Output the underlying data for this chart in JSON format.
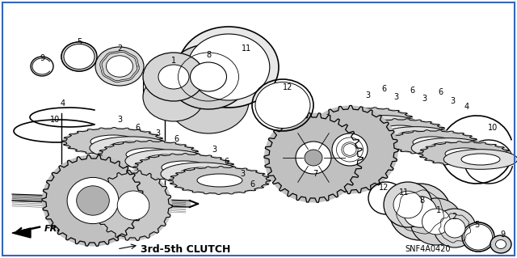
{
  "title": "3rd-5th CLUTCH",
  "part_number": "SNF4A0420",
  "background_color": "#ffffff",
  "fig_width": 6.4,
  "fig_height": 3.19,
  "dpi": 100,
  "line_color": "#000000",
  "label_fontsize": 7.0,
  "title_fontsize": 9,
  "part_fontsize": 7
}
